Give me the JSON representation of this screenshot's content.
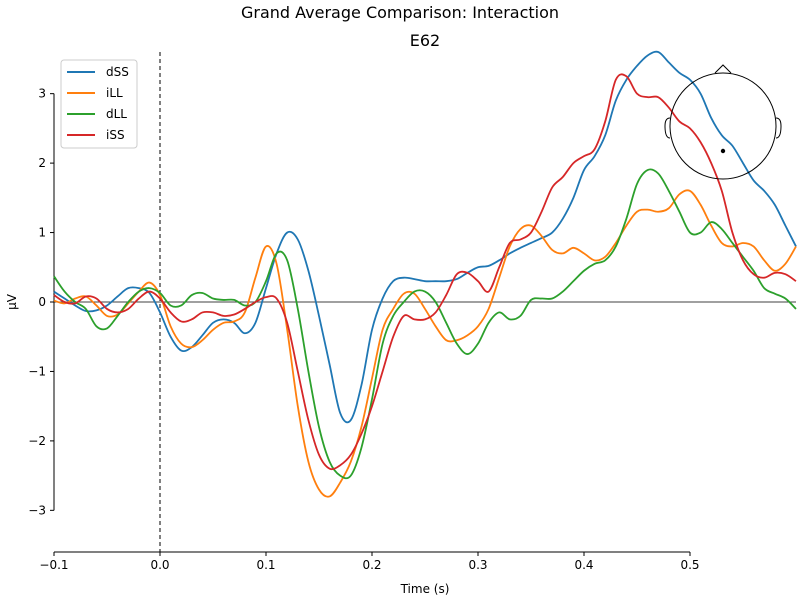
{
  "chart_data": {
    "type": "line",
    "title": "Grand Average Comparison: Interaction",
    "subtitle": "E62",
    "xlabel": "Time (s)",
    "ylabel": "µV",
    "xlim": [
      -0.1,
      0.6
    ],
    "ylim": [
      -3.6,
      3.6
    ],
    "x_axis_span": [
      -0.1,
      0.5
    ],
    "y_axis_span": [
      -3,
      3
    ],
    "xticks": [
      -0.1,
      0.0,
      0.1,
      0.2,
      0.3,
      0.4,
      0.5
    ],
    "xtick_labels": [
      "−0.1",
      "0.0",
      "0.1",
      "0.2",
      "0.3",
      "0.4",
      "0.5"
    ],
    "yticks": [
      -3,
      -2,
      -1,
      0,
      1,
      2,
      3
    ],
    "ytick_labels": [
      "−3",
      "−2",
      "−1",
      "0",
      "1",
      "2",
      "3"
    ],
    "zero_line": true,
    "stimulus_onset_line": 0.0,
    "grid": false,
    "legend_position": "top-left",
    "sensor_inset": "top-right",
    "series": [
      {
        "name": "dSS",
        "color": "#1f77b4",
        "points": [
          [
            -0.1,
            0.15
          ],
          [
            -0.09,
            0.05
          ],
          [
            -0.08,
            -0.05
          ],
          [
            -0.07,
            -0.13
          ],
          [
            -0.06,
            -0.12
          ],
          [
            -0.05,
            -0.05
          ],
          [
            -0.04,
            0.08
          ],
          [
            -0.03,
            0.2
          ],
          [
            -0.02,
            0.2
          ],
          [
            -0.01,
            0.13
          ],
          [
            0.0,
            -0.15
          ],
          [
            0.01,
            -0.5
          ],
          [
            0.02,
            -0.7
          ],
          [
            0.03,
            -0.65
          ],
          [
            0.04,
            -0.48
          ],
          [
            0.05,
            -0.3
          ],
          [
            0.06,
            -0.25
          ],
          [
            0.07,
            -0.3
          ],
          [
            0.08,
            -0.45
          ],
          [
            0.09,
            -0.3
          ],
          [
            0.1,
            0.2
          ],
          [
            0.11,
            0.7
          ],
          [
            0.12,
            1.0
          ],
          [
            0.13,
            0.9
          ],
          [
            0.14,
            0.45
          ],
          [
            0.15,
            -0.2
          ],
          [
            0.16,
            -0.9
          ],
          [
            0.17,
            -1.6
          ],
          [
            0.18,
            -1.7
          ],
          [
            0.19,
            -1.2
          ],
          [
            0.2,
            -0.4
          ],
          [
            0.21,
            0.05
          ],
          [
            0.22,
            0.3
          ],
          [
            0.23,
            0.35
          ],
          [
            0.24,
            0.33
          ],
          [
            0.25,
            0.3
          ],
          [
            0.26,
            0.3
          ],
          [
            0.27,
            0.3
          ],
          [
            0.28,
            0.33
          ],
          [
            0.29,
            0.42
          ],
          [
            0.3,
            0.5
          ],
          [
            0.31,
            0.52
          ],
          [
            0.32,
            0.6
          ],
          [
            0.33,
            0.7
          ],
          [
            0.34,
            0.78
          ],
          [
            0.35,
            0.85
          ],
          [
            0.36,
            0.92
          ],
          [
            0.37,
            1.0
          ],
          [
            0.38,
            1.2
          ],
          [
            0.39,
            1.5
          ],
          [
            0.4,
            1.9
          ],
          [
            0.41,
            2.1
          ],
          [
            0.42,
            2.4
          ],
          [
            0.43,
            2.9
          ],
          [
            0.44,
            3.2
          ],
          [
            0.45,
            3.4
          ],
          [
            0.46,
            3.55
          ],
          [
            0.47,
            3.6
          ],
          [
            0.48,
            3.45
          ],
          [
            0.49,
            3.3
          ],
          [
            0.5,
            3.2
          ],
          [
            0.51,
            3.0
          ],
          [
            0.52,
            2.65
          ],
          [
            0.53,
            2.4
          ],
          [
            0.54,
            2.25
          ],
          [
            0.55,
            2.0
          ],
          [
            0.56,
            1.75
          ],
          [
            0.57,
            1.6
          ],
          [
            0.58,
            1.4
          ],
          [
            0.59,
            1.1
          ],
          [
            0.6,
            0.8
          ]
        ]
      },
      {
        "name": "iLL",
        "color": "#ff7f0e",
        "points": [
          [
            -0.1,
            0.02
          ],
          [
            -0.09,
            -0.02
          ],
          [
            -0.08,
            0.05
          ],
          [
            -0.07,
            0.08
          ],
          [
            -0.06,
            -0.05
          ],
          [
            -0.05,
            -0.2
          ],
          [
            -0.04,
            -0.18
          ],
          [
            -0.03,
            -0.02
          ],
          [
            -0.02,
            0.15
          ],
          [
            -0.01,
            0.28
          ],
          [
            0.0,
            0.1
          ],
          [
            0.01,
            -0.35
          ],
          [
            0.02,
            -0.6
          ],
          [
            0.03,
            -0.65
          ],
          [
            0.04,
            -0.55
          ],
          [
            0.05,
            -0.4
          ],
          [
            0.06,
            -0.3
          ],
          [
            0.07,
            -0.28
          ],
          [
            0.08,
            -0.15
          ],
          [
            0.09,
            0.35
          ],
          [
            0.1,
            0.8
          ],
          [
            0.11,
            0.55
          ],
          [
            0.12,
            -0.4
          ],
          [
            0.13,
            -1.5
          ],
          [
            0.14,
            -2.3
          ],
          [
            0.15,
            -2.7
          ],
          [
            0.16,
            -2.8
          ],
          [
            0.17,
            -2.6
          ],
          [
            0.18,
            -2.3
          ],
          [
            0.19,
            -1.8
          ],
          [
            0.2,
            -1.1
          ],
          [
            0.21,
            -0.4
          ],
          [
            0.22,
            -0.1
          ],
          [
            0.23,
            0.12
          ],
          [
            0.24,
            0.12
          ],
          [
            0.25,
            -0.1
          ],
          [
            0.26,
            -0.35
          ],
          [
            0.27,
            -0.55
          ],
          [
            0.28,
            -0.55
          ],
          [
            0.29,
            -0.48
          ],
          [
            0.3,
            -0.35
          ],
          [
            0.31,
            -0.1
          ],
          [
            0.32,
            0.35
          ],
          [
            0.33,
            0.8
          ],
          [
            0.34,
            1.05
          ],
          [
            0.35,
            1.1
          ],
          [
            0.36,
            0.95
          ],
          [
            0.37,
            0.75
          ],
          [
            0.38,
            0.7
          ],
          [
            0.39,
            0.78
          ],
          [
            0.4,
            0.7
          ],
          [
            0.41,
            0.6
          ],
          [
            0.42,
            0.65
          ],
          [
            0.43,
            0.85
          ],
          [
            0.44,
            1.1
          ],
          [
            0.45,
            1.3
          ],
          [
            0.46,
            1.33
          ],
          [
            0.47,
            1.3
          ],
          [
            0.48,
            1.35
          ],
          [
            0.49,
            1.55
          ],
          [
            0.5,
            1.6
          ],
          [
            0.51,
            1.4
          ],
          [
            0.52,
            1.1
          ],
          [
            0.53,
            0.85
          ],
          [
            0.54,
            0.8
          ],
          [
            0.55,
            0.85
          ],
          [
            0.56,
            0.8
          ],
          [
            0.57,
            0.6
          ],
          [
            0.58,
            0.45
          ],
          [
            0.59,
            0.55
          ],
          [
            0.6,
            0.8
          ]
        ]
      },
      {
        "name": "dLL",
        "color": "#2ca02c",
        "points": [
          [
            -0.1,
            0.37
          ],
          [
            -0.09,
            0.15
          ],
          [
            -0.08,
            0.0
          ],
          [
            -0.07,
            -0.1
          ],
          [
            -0.06,
            -0.35
          ],
          [
            -0.05,
            -0.38
          ],
          [
            -0.04,
            -0.2
          ],
          [
            -0.03,
            0.0
          ],
          [
            -0.02,
            0.15
          ],
          [
            -0.01,
            0.2
          ],
          [
            0.0,
            0.13
          ],
          [
            0.01,
            -0.05
          ],
          [
            0.02,
            -0.05
          ],
          [
            0.03,
            0.1
          ],
          [
            0.04,
            0.13
          ],
          [
            0.05,
            0.05
          ],
          [
            0.06,
            0.03
          ],
          [
            0.07,
            0.03
          ],
          [
            0.08,
            -0.05
          ],
          [
            0.09,
            0.0
          ],
          [
            0.1,
            0.3
          ],
          [
            0.11,
            0.7
          ],
          [
            0.12,
            0.6
          ],
          [
            0.13,
            -0.1
          ],
          [
            0.14,
            -1.0
          ],
          [
            0.15,
            -1.8
          ],
          [
            0.16,
            -2.3
          ],
          [
            0.17,
            -2.5
          ],
          [
            0.18,
            -2.5
          ],
          [
            0.19,
            -2.1
          ],
          [
            0.2,
            -1.4
          ],
          [
            0.21,
            -0.6
          ],
          [
            0.22,
            -0.2
          ],
          [
            0.23,
            0.0
          ],
          [
            0.24,
            0.15
          ],
          [
            0.25,
            0.15
          ],
          [
            0.26,
            0.0
          ],
          [
            0.27,
            -0.3
          ],
          [
            0.28,
            -0.6
          ],
          [
            0.29,
            -0.75
          ],
          [
            0.3,
            -0.6
          ],
          [
            0.31,
            -0.3
          ],
          [
            0.32,
            -0.15
          ],
          [
            0.33,
            -0.25
          ],
          [
            0.34,
            -0.2
          ],
          [
            0.35,
            0.03
          ],
          [
            0.36,
            0.05
          ],
          [
            0.37,
            0.05
          ],
          [
            0.38,
            0.15
          ],
          [
            0.39,
            0.3
          ],
          [
            0.4,
            0.45
          ],
          [
            0.41,
            0.55
          ],
          [
            0.42,
            0.6
          ],
          [
            0.43,
            0.8
          ],
          [
            0.44,
            1.2
          ],
          [
            0.45,
            1.7
          ],
          [
            0.46,
            1.9
          ],
          [
            0.47,
            1.85
          ],
          [
            0.48,
            1.6
          ],
          [
            0.49,
            1.3
          ],
          [
            0.5,
            1.0
          ],
          [
            0.51,
            1.0
          ],
          [
            0.52,
            1.15
          ],
          [
            0.53,
            1.05
          ],
          [
            0.54,
            0.85
          ],
          [
            0.55,
            0.65
          ],
          [
            0.56,
            0.45
          ],
          [
            0.57,
            0.2
          ],
          [
            0.58,
            0.12
          ],
          [
            0.59,
            0.05
          ],
          [
            0.6,
            -0.1
          ]
        ]
      },
      {
        "name": "iSS",
        "color": "#d62728",
        "points": [
          [
            -0.1,
            0.1
          ],
          [
            -0.09,
            0.0
          ],
          [
            -0.08,
            -0.02
          ],
          [
            -0.07,
            0.08
          ],
          [
            -0.06,
            0.05
          ],
          [
            -0.05,
            -0.1
          ],
          [
            -0.04,
            -0.15
          ],
          [
            -0.03,
            -0.1
          ],
          [
            -0.02,
            0.05
          ],
          [
            -0.01,
            0.15
          ],
          [
            0.0,
            0.05
          ],
          [
            0.01,
            -0.15
          ],
          [
            0.02,
            -0.28
          ],
          [
            0.03,
            -0.25
          ],
          [
            0.04,
            -0.15
          ],
          [
            0.05,
            -0.15
          ],
          [
            0.06,
            -0.2
          ],
          [
            0.07,
            -0.18
          ],
          [
            0.08,
            -0.1
          ],
          [
            0.09,
            0.0
          ],
          [
            0.1,
            0.07
          ],
          [
            0.11,
            0.05
          ],
          [
            0.12,
            -0.3
          ],
          [
            0.13,
            -1.0
          ],
          [
            0.14,
            -1.7
          ],
          [
            0.15,
            -2.2
          ],
          [
            0.16,
            -2.4
          ],
          [
            0.17,
            -2.35
          ],
          [
            0.18,
            -2.2
          ],
          [
            0.19,
            -1.9
          ],
          [
            0.2,
            -1.5
          ],
          [
            0.21,
            -1.0
          ],
          [
            0.22,
            -0.5
          ],
          [
            0.23,
            -0.2
          ],
          [
            0.24,
            -0.25
          ],
          [
            0.25,
            -0.25
          ],
          [
            0.26,
            -0.15
          ],
          [
            0.27,
            0.1
          ],
          [
            0.28,
            0.4
          ],
          [
            0.29,
            0.42
          ],
          [
            0.3,
            0.3
          ],
          [
            0.31,
            0.15
          ],
          [
            0.32,
            0.5
          ],
          [
            0.33,
            0.85
          ],
          [
            0.34,
            0.9
          ],
          [
            0.35,
            1.0
          ],
          [
            0.36,
            1.3
          ],
          [
            0.37,
            1.65
          ],
          [
            0.38,
            1.8
          ],
          [
            0.39,
            2.0
          ],
          [
            0.4,
            2.1
          ],
          [
            0.41,
            2.2
          ],
          [
            0.42,
            2.6
          ],
          [
            0.43,
            3.2
          ],
          [
            0.44,
            3.25
          ],
          [
            0.45,
            3.0
          ],
          [
            0.46,
            2.95
          ],
          [
            0.47,
            2.95
          ],
          [
            0.48,
            2.8
          ],
          [
            0.49,
            2.6
          ],
          [
            0.5,
            2.5
          ],
          [
            0.51,
            2.3
          ],
          [
            0.52,
            2.0
          ],
          [
            0.53,
            1.6
          ],
          [
            0.54,
            1.0
          ],
          [
            0.55,
            0.6
          ],
          [
            0.56,
            0.4
          ],
          [
            0.57,
            0.35
          ],
          [
            0.58,
            0.42
          ],
          [
            0.59,
            0.4
          ],
          [
            0.6,
            0.3
          ]
        ]
      }
    ]
  }
}
